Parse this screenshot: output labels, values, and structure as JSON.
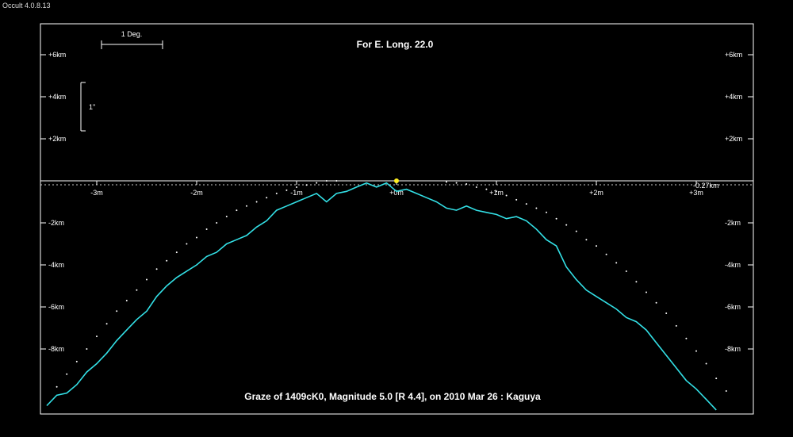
{
  "window": {
    "app_title": "Occult 4.0.8.13"
  },
  "colors": {
    "background": "#000000",
    "frame": "#ffffff",
    "profile": "#33e0e6",
    "points": "#ffffff",
    "marker": "#ffee22",
    "limb_line": "#c8c8c8"
  },
  "scale_bars": {
    "horizontal_label": "1 Deg.",
    "vertical_label": "1\""
  },
  "chart_data": {
    "type": "line",
    "title": "For E. Long. 22.0",
    "caption": "Graze of  1409cK0,  Magnitude 5.0 [R 4.4],  on 2010 Mar 26  :  Kaguya",
    "xlim": [
      -3.5,
      3.3
    ],
    "ylim": [
      -11.2,
      7.0
    ],
    "grid": false,
    "y_ticks": [
      {
        "value": 6,
        "label": "+6km"
      },
      {
        "value": 4,
        "label": "+4km"
      },
      {
        "value": 2,
        "label": "+2km"
      },
      {
        "value": -2,
        "label": "-2km"
      },
      {
        "value": -4,
        "label": "-4km"
      },
      {
        "value": -6,
        "label": "-6km"
      },
      {
        "value": -8,
        "label": "-8km"
      }
    ],
    "x_ticks": [
      {
        "value": -3,
        "label": "-3m"
      },
      {
        "value": -2,
        "label": "-2m"
      },
      {
        "value": -1,
        "label": "-1m"
      },
      {
        "value": 0,
        "label": "+0m"
      },
      {
        "value": 1,
        "label": "+1m"
      },
      {
        "value": 2,
        "label": "+2m"
      },
      {
        "value": 3,
        "label": "+3m"
      }
    ],
    "limb_line": {
      "y": -0.27,
      "label": "-0.27km"
    },
    "star_marker": {
      "x": 0,
      "y": 0
    },
    "series": [
      {
        "values": [
          [
            -3.5,
            -10.7
          ],
          [
            -3.4,
            -10.2
          ],
          [
            -3.3,
            -10.1
          ],
          [
            -3.2,
            -9.7
          ],
          [
            -3.1,
            -9.1
          ],
          [
            -3.0,
            -8.7
          ],
          [
            -2.9,
            -8.2
          ],
          [
            -2.8,
            -7.6
          ],
          [
            -2.7,
            -7.1
          ],
          [
            -2.6,
            -6.6
          ],
          [
            -2.5,
            -6.2
          ],
          [
            -2.4,
            -5.5
          ],
          [
            -2.3,
            -5.0
          ],
          [
            -2.2,
            -4.6
          ],
          [
            -2.1,
            -4.3
          ],
          [
            -2.0,
            -4.0
          ],
          [
            -1.9,
            -3.6
          ],
          [
            -1.8,
            -3.4
          ],
          [
            -1.7,
            -3.0
          ],
          [
            -1.6,
            -2.8
          ],
          [
            -1.5,
            -2.6
          ],
          [
            -1.4,
            -2.2
          ],
          [
            -1.3,
            -1.9
          ],
          [
            -1.2,
            -1.4
          ],
          [
            -1.1,
            -1.2
          ],
          [
            -1.0,
            -1.0
          ],
          [
            -0.9,
            -0.8
          ],
          [
            -0.8,
            -0.6
          ],
          [
            -0.7,
            -1.0
          ],
          [
            -0.6,
            -0.6
          ],
          [
            -0.5,
            -0.5
          ],
          [
            -0.4,
            -0.3
          ],
          [
            -0.3,
            -0.1
          ],
          [
            -0.2,
            -0.3
          ],
          [
            -0.1,
            -0.1
          ],
          [
            0.0,
            -0.5
          ],
          [
            0.1,
            -0.4
          ],
          [
            0.2,
            -0.6
          ],
          [
            0.3,
            -0.8
          ],
          [
            0.4,
            -1.0
          ],
          [
            0.5,
            -1.3
          ],
          [
            0.6,
            -1.4
          ],
          [
            0.7,
            -1.2
          ],
          [
            0.8,
            -1.4
          ],
          [
            0.9,
            -1.5
          ],
          [
            1.0,
            -1.6
          ],
          [
            1.1,
            -1.8
          ],
          [
            1.2,
            -1.7
          ],
          [
            1.3,
            -1.9
          ],
          [
            1.4,
            -2.3
          ],
          [
            1.5,
            -2.8
          ],
          [
            1.6,
            -3.1
          ],
          [
            1.7,
            -4.1
          ],
          [
            1.8,
            -4.7
          ],
          [
            1.9,
            -5.2
          ],
          [
            2.0,
            -5.5
          ],
          [
            2.1,
            -5.8
          ],
          [
            2.2,
            -6.1
          ],
          [
            2.3,
            -6.5
          ],
          [
            2.4,
            -6.7
          ],
          [
            2.5,
            -7.1
          ],
          [
            2.6,
            -7.7
          ],
          [
            2.7,
            -8.3
          ],
          [
            2.8,
            -8.9
          ],
          [
            2.9,
            -9.5
          ],
          [
            3.0,
            -9.9
          ],
          [
            3.1,
            -10.4
          ],
          [
            3.2,
            -10.9
          ]
        ]
      },
      {
        "values": [
          [
            -3.4,
            -9.8
          ],
          [
            -3.3,
            -9.2
          ],
          [
            -3.2,
            -8.6
          ],
          [
            -3.1,
            -8.0
          ],
          [
            -3.0,
            -7.4
          ],
          [
            -2.9,
            -6.8
          ],
          [
            -2.8,
            -6.2
          ],
          [
            -2.7,
            -5.7
          ],
          [
            -2.6,
            -5.2
          ],
          [
            -2.5,
            -4.7
          ],
          [
            -2.4,
            -4.2
          ],
          [
            -2.3,
            -3.8
          ],
          [
            -2.2,
            -3.4
          ],
          [
            -2.1,
            -3.0
          ],
          [
            -2.0,
            -2.7
          ],
          [
            -1.9,
            -2.3
          ],
          [
            -1.8,
            -2.0
          ],
          [
            -1.7,
            -1.7
          ],
          [
            -1.6,
            -1.4
          ],
          [
            -1.5,
            -1.2
          ],
          [
            -1.4,
            -1.0
          ],
          [
            -1.3,
            -0.8
          ],
          [
            -1.2,
            -0.6
          ],
          [
            -1.1,
            -0.45
          ],
          [
            -1.0,
            -0.3
          ],
          [
            -0.9,
            -0.2
          ],
          [
            -0.8,
            -0.1
          ],
          [
            -0.7,
            0.0
          ],
          [
            -0.6,
            0.0
          ],
          [
            0.5,
            -0.05
          ],
          [
            0.6,
            -0.1
          ],
          [
            0.7,
            -0.15
          ],
          [
            0.8,
            -0.3
          ],
          [
            0.9,
            -0.4
          ],
          [
            1.0,
            -0.5
          ],
          [
            1.1,
            -0.7
          ],
          [
            1.2,
            -0.9
          ],
          [
            1.3,
            -1.1
          ],
          [
            1.4,
            -1.3
          ],
          [
            1.5,
            -1.5
          ],
          [
            1.6,
            -1.8
          ],
          [
            1.7,
            -2.1
          ],
          [
            1.8,
            -2.4
          ],
          [
            1.9,
            -2.8
          ],
          [
            2.0,
            -3.1
          ],
          [
            2.1,
            -3.5
          ],
          [
            2.2,
            -3.9
          ],
          [
            2.3,
            -4.3
          ],
          [
            2.4,
            -4.8
          ],
          [
            2.5,
            -5.3
          ],
          [
            2.6,
            -5.8
          ],
          [
            2.7,
            -6.3
          ],
          [
            2.8,
            -6.9
          ],
          [
            2.9,
            -7.5
          ],
          [
            3.0,
            -8.1
          ],
          [
            3.1,
            -8.7
          ],
          [
            3.2,
            -9.4
          ],
          [
            3.3,
            -10.0
          ]
        ]
      }
    ]
  }
}
